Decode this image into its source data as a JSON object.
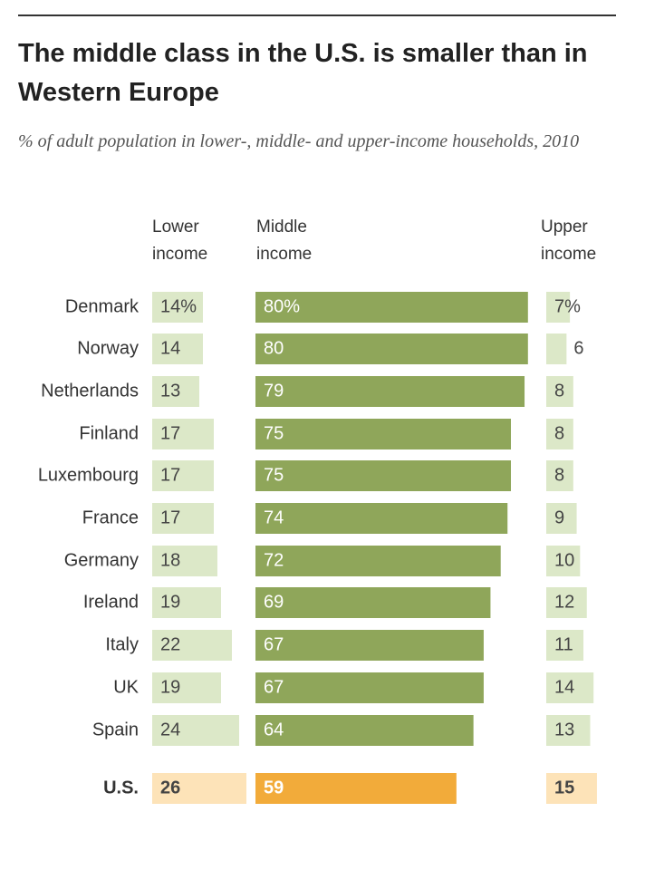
{
  "title": "The middle class in the U.S. is smaller than in Western Europe",
  "subtitle": "% of adult population in lower-, middle- and upper-income households, 2010",
  "colors": {
    "lower": "#dce8c8",
    "middle": "#8fa65a",
    "upper": "#dce8c8",
    "us_lower": "#fde3b8",
    "us_middle": "#f2ab3a",
    "us_upper": "#fde3b8",
    "text_dark": "#444444",
    "text_light": "#ffffff"
  },
  "chart_data": {
    "type": "bar",
    "title": "The middle class in the U.S. is smaller than in Western Europe",
    "subtitle": "% of adult population in lower-, middle- and upper-income households, 2010",
    "column_headers": {
      "lower": "Lower\nincome",
      "middle": "Middle\nincome",
      "upper": "Upper\nincome"
    },
    "categories": [
      "Denmark",
      "Norway",
      "Netherlands",
      "Finland",
      "Luxembourg",
      "France",
      "Germany",
      "Ireland",
      "Italy",
      "UK",
      "Spain",
      "U.S."
    ],
    "highlight": "U.S.",
    "series": [
      {
        "name": "Lower income",
        "values": [
          14,
          14,
          13,
          17,
          17,
          17,
          18,
          19,
          22,
          19,
          24,
          26
        ],
        "labels": [
          "14%",
          "14",
          "13",
          "17",
          "17",
          "17",
          "18",
          "19",
          "22",
          "19",
          "24",
          "26"
        ]
      },
      {
        "name": "Middle income",
        "values": [
          80,
          80,
          79,
          75,
          75,
          74,
          72,
          69,
          67,
          67,
          64,
          59
        ],
        "labels": [
          "80%",
          "80",
          "79",
          "75",
          "75",
          "74",
          "72",
          "69",
          "67",
          "67",
          "64",
          "59"
        ]
      },
      {
        "name": "Upper income",
        "values": [
          7,
          6,
          8,
          8,
          8,
          9,
          10,
          12,
          11,
          14,
          13,
          15
        ],
        "labels": [
          "7%",
          "6",
          "8",
          "8",
          "8",
          "9",
          "10",
          "12",
          "11",
          "14",
          "13",
          "15"
        ]
      }
    ]
  }
}
